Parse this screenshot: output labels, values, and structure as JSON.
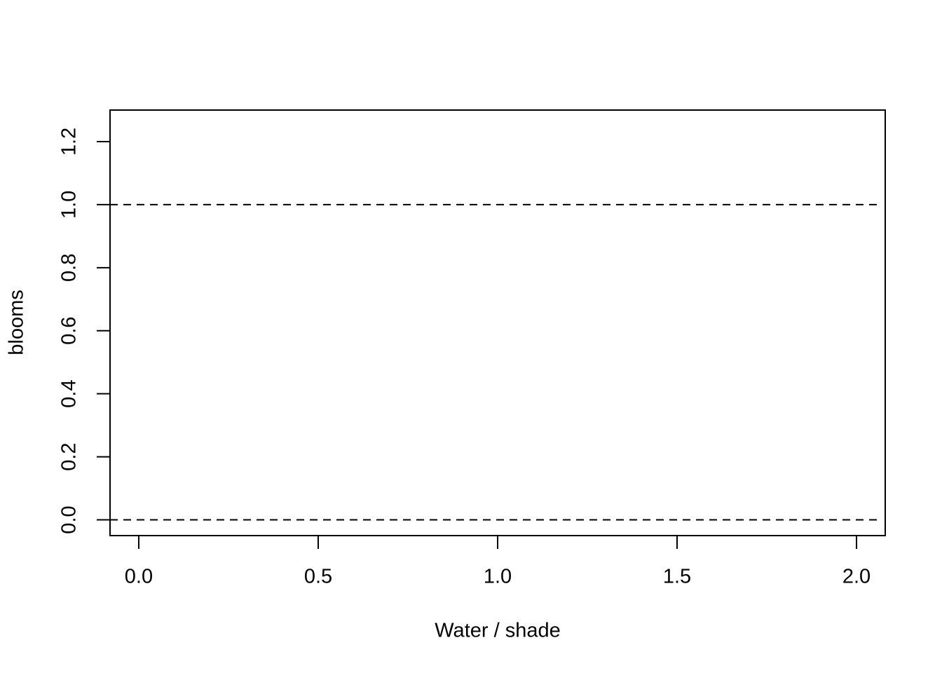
{
  "chart_data": {
    "type": "line",
    "x_label": "Water / shade",
    "y_label": "blooms",
    "xlim": [
      -0.08,
      2.08
    ],
    "ylim": [
      -0.05,
      1.3
    ],
    "xticks": [
      {
        "value": 0,
        "label": "0.0"
      },
      0.5,
      {
        "value": 1,
        "label": "1.0"
      },
      1.5,
      {
        "value": 2,
        "label": "2.0"
      }
    ],
    "yticks": [
      {
        "value": 0,
        "label": "0.0"
      },
      0.2,
      0.4,
      0.6,
      0.8,
      {
        "value": 1,
        "label": "1.0"
      },
      1.2
    ],
    "hlines": [
      0,
      1
    ],
    "hline_style": "dashed",
    "color": "#000000"
  }
}
